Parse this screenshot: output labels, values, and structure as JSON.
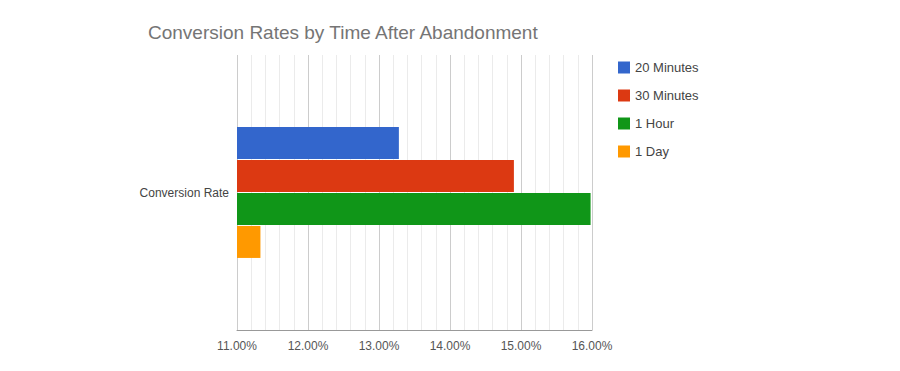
{
  "chart_data": {
    "type": "bar",
    "orientation": "horizontal",
    "title": "Conversion Rates by Time After Abandonment",
    "categories": [
      "Conversion Rate"
    ],
    "series": [
      {
        "name": "20 Minutes",
        "color": "#3366cc",
        "values": [
          13.28
        ]
      },
      {
        "name": "30 Minutes",
        "color": "#dc3912",
        "values": [
          14.9
        ]
      },
      {
        "name": "1 Hour",
        "color": "#109618",
        "values": [
          15.98
        ]
      },
      {
        "name": "1 Day",
        "color": "#ff9900",
        "values": [
          11.33
        ]
      }
    ],
    "xlim": [
      11,
      16
    ],
    "xticks": [
      {
        "value": 11,
        "label": "11.00%"
      },
      {
        "value": 12,
        "label": "12.00%"
      },
      {
        "value": 13,
        "label": "13.00%"
      },
      {
        "value": 14,
        "label": "14.00%"
      },
      {
        "value": 15,
        "label": "15.00%"
      },
      {
        "value": 16,
        "label": "16.00%"
      }
    ],
    "grid": true,
    "legend": "right"
  }
}
